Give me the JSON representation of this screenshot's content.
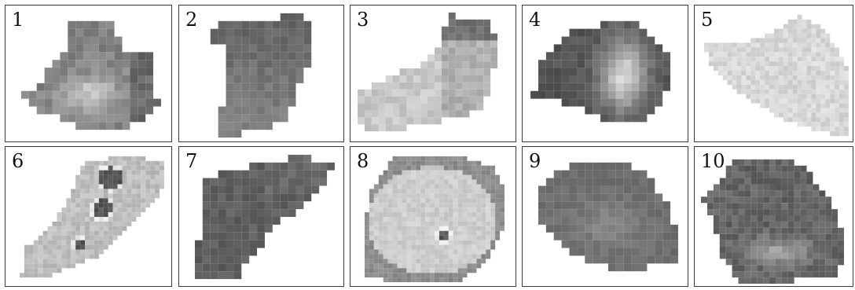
{
  "panels": [
    {
      "label": "1"
    },
    {
      "label": "2"
    },
    {
      "label": "3"
    },
    {
      "label": "4"
    },
    {
      "label": "5"
    },
    {
      "label": "6"
    },
    {
      "label": "7"
    },
    {
      "label": "8"
    },
    {
      "label": "9"
    },
    {
      "label": "10"
    }
  ]
}
